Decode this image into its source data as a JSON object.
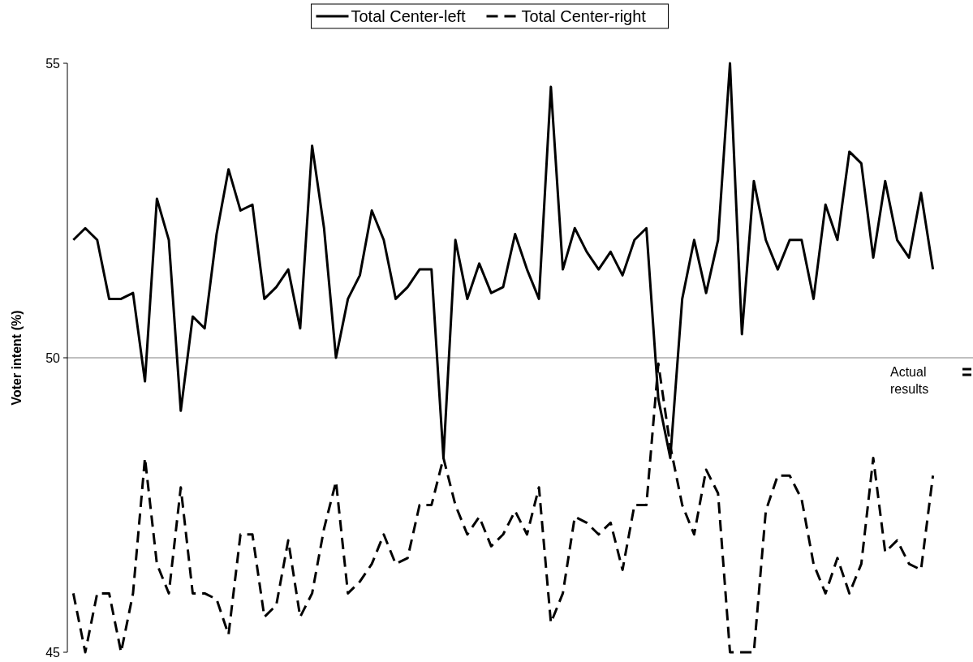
{
  "chart_data": {
    "type": "line",
    "ylabel": "Voter intent (%)",
    "categories": [
      null,
      null,
      null,
      null,
      null,
      null,
      null,
      null,
      null,
      null,
      null,
      null,
      null,
      null,
      null,
      null,
      null,
      null,
      null,
      null,
      null,
      null,
      null,
      null,
      null,
      null,
      null,
      null,
      null,
      null,
      null,
      null,
      null,
      null,
      null,
      null,
      null,
      null,
      null,
      null,
      null,
      null,
      null,
      null,
      null,
      null,
      null,
      null,
      null,
      null,
      null,
      null,
      null,
      null,
      null,
      null,
      null,
      null,
      null,
      null,
      null,
      null,
      null,
      null,
      null,
      null,
      null,
      null,
      null,
      null,
      null,
      null,
      null
    ],
    "series": [
      {
        "name": "Total Center-left",
        "color": "#000000",
        "line_style": "solid",
        "values": [
          52.0,
          52.2,
          52.0,
          51.0,
          51.0,
          51.1,
          49.6,
          52.7,
          52.0,
          49.1,
          50.7,
          50.5,
          52.1,
          53.2,
          52.5,
          52.6,
          51.0,
          51.2,
          51.5,
          50.5,
          53.6,
          52.2,
          50.0,
          51.0,
          51.4,
          52.5,
          52.0,
          51.0,
          51.2,
          51.5,
          51.5,
          48.3,
          52.0,
          51.0,
          51.6,
          51.1,
          51.2,
          52.1,
          51.5,
          51.0,
          54.6,
          51.5,
          52.2,
          51.8,
          51.5,
          51.8,
          51.4,
          52.0,
          52.2,
          49.3,
          48.3,
          51.0,
          52.0,
          51.1,
          52.0,
          55.0,
          50.4,
          53.0,
          52.0,
          51.5,
          52.0,
          52.0,
          51.0,
          52.6,
          52.0,
          53.5,
          53.3,
          51.7,
          53.0,
          52.0,
          51.7,
          52.8,
          51.5
        ]
      },
      {
        "name": "Total Center-right",
        "color": "#000000",
        "line_style": "dashed",
        "values": [
          46.0,
          45.0,
          46.0,
          46.0,
          45.0,
          46.0,
          48.3,
          46.5,
          46.0,
          47.8,
          46.0,
          46.0,
          45.9,
          45.3,
          47.0,
          47.0,
          45.6,
          45.8,
          46.9,
          45.6,
          46.0,
          47.1,
          47.9,
          46.0,
          46.2,
          46.5,
          47.0,
          46.5,
          46.6,
          47.5,
          47.5,
          48.3,
          47.5,
          47.0,
          47.3,
          46.8,
          47.0,
          47.4,
          47.0,
          47.8,
          45.5,
          46.0,
          47.3,
          47.2,
          47.0,
          47.2,
          46.4,
          47.5,
          47.5,
          49.9,
          48.5,
          47.5,
          47.0,
          48.1,
          47.7,
          45.0,
          45.0,
          45.0,
          47.4,
          48.0,
          48.0,
          47.6,
          46.5,
          46.0,
          46.6,
          46.0,
          46.5,
          48.3,
          46.7,
          46.9,
          46.5,
          46.4,
          48.0
        ]
      }
    ],
    "ylim": [
      45,
      55
    ],
    "yticks": [
      45,
      50,
      55
    ],
    "ref_lines": [
      {
        "axis": "y",
        "value": 50,
        "color": "#808080"
      }
    ],
    "annotations": [
      "Actual results"
    ],
    "legend": "top",
    "grid": false
  }
}
